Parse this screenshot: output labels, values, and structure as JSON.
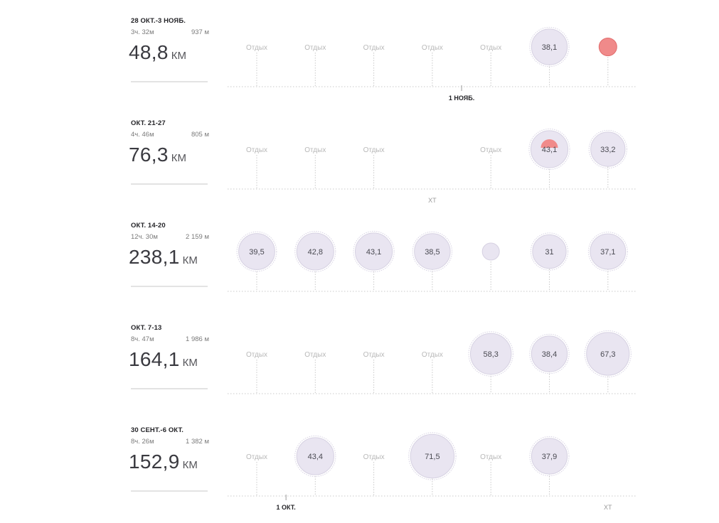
{
  "rest_label": "Отдых",
  "colors": {
    "bubble_fill": "#e9e5f1",
    "bubble_stroke": "#d6d1e2",
    "race_fill": "#f08a8a",
    "race_stroke": "#e26d6d",
    "axis": "#c9c9c9"
  },
  "weeks": [
    {
      "label": "28 ОКТ.-3 НОЯБ.",
      "time": "3ч. 32м",
      "elevation": "937 м",
      "distance": "48,8",
      "unit": "КМ",
      "axis_marker": {
        "text": "1 НОЯБ.",
        "day": 3.5
      },
      "days": [
        {
          "type": "rest"
        },
        {
          "type": "rest"
        },
        {
          "type": "rest"
        },
        {
          "type": "rest"
        },
        {
          "type": "rest"
        },
        {
          "type": "run",
          "value": "38,1",
          "km": 38.1
        },
        {
          "type": "race",
          "value": "",
          "km": 10.7
        }
      ]
    },
    {
      "label": "ОКТ. 21-27",
      "time": "4ч. 46м",
      "elevation": "805 м",
      "distance": "76,3",
      "unit": "КМ",
      "xt_marker": {
        "text": "XT",
        "day": 3
      },
      "days": [
        {
          "type": "rest"
        },
        {
          "type": "rest"
        },
        {
          "type": "rest"
        },
        {
          "type": "none"
        },
        {
          "type": "rest"
        },
        {
          "type": "run",
          "value": "43,1",
          "km": 43.1,
          "race_part": true
        },
        {
          "type": "run",
          "value": "33,2",
          "km": 33.2
        }
      ]
    },
    {
      "label": "ОКТ. 14-20",
      "time": "12ч. 30м",
      "elevation": "2 159 м",
      "distance": "238,1",
      "unit": "КМ",
      "days": [
        {
          "type": "run",
          "value": "39,5",
          "km": 39.5
        },
        {
          "type": "run",
          "value": "42,8",
          "km": 42.8
        },
        {
          "type": "run",
          "value": "43,1",
          "km": 43.1
        },
        {
          "type": "run",
          "value": "38,5",
          "km": 38.5
        },
        {
          "type": "small",
          "value": "",
          "km": 6
        },
        {
          "type": "run",
          "value": "31",
          "km": 31
        },
        {
          "type": "run",
          "value": "37,1",
          "km": 37.1
        }
      ]
    },
    {
      "label": "ОКТ. 7-13",
      "time": "8ч. 47м",
      "elevation": "1 986 м",
      "distance": "164,1",
      "unit": "КМ",
      "days": [
        {
          "type": "rest"
        },
        {
          "type": "rest"
        },
        {
          "type": "rest"
        },
        {
          "type": "rest"
        },
        {
          "type": "run",
          "value": "58,3",
          "km": 58.3
        },
        {
          "type": "run",
          "value": "38,4",
          "km": 38.4
        },
        {
          "type": "run",
          "value": "67,3",
          "km": 67.3
        }
      ]
    },
    {
      "label": "30 СЕНТ.-6 ОКТ.",
      "time": "8ч. 26м",
      "elevation": "1 382 м",
      "distance": "152,9",
      "unit": "КМ",
      "axis_marker": {
        "text": "1 ОКТ.",
        "day": 0.5
      },
      "xt_marker": {
        "text": "XT",
        "day": 6
      },
      "days": [
        {
          "type": "rest"
        },
        {
          "type": "run",
          "value": "43,4",
          "km": 43.4
        },
        {
          "type": "rest"
        },
        {
          "type": "run",
          "value": "71,5",
          "km": 71.5
        },
        {
          "type": "rest"
        },
        {
          "type": "run",
          "value": "37,9",
          "km": 37.9
        },
        {
          "type": "none"
        }
      ]
    }
  ]
}
